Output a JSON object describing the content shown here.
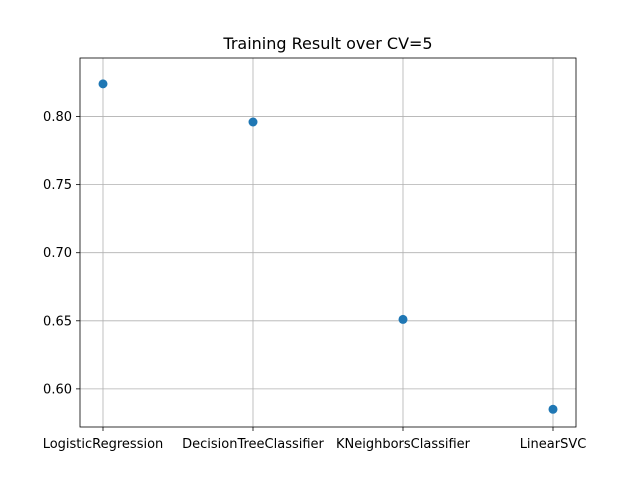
{
  "chart_data": {
    "type": "scatter",
    "title": "Training Result over CV=5",
    "xlabel": "",
    "ylabel": "",
    "categories": [
      "LogisticRegression",
      "DecisionTreeClassifier",
      "KNeighborsClassifier",
      "LinearSVC"
    ],
    "values": [
      0.824,
      0.796,
      0.651,
      0.585
    ],
    "ylim": [
      0.572,
      0.843
    ],
    "yticks": [
      0.6,
      0.65,
      0.7,
      0.75,
      0.8
    ],
    "ytick_labels": [
      "0.60",
      "0.65",
      "0.70",
      "0.75",
      "0.80"
    ],
    "grid": true,
    "marker_color": "#1f77b4",
    "grid_color": "#b0b0b0"
  }
}
